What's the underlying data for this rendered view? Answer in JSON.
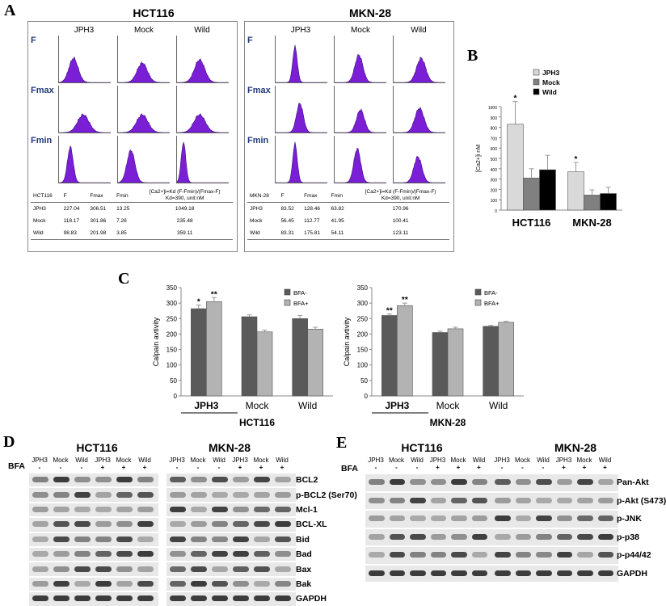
{
  "panel_labels": {
    "a": "A",
    "b": "B",
    "c": "C",
    "d": "D",
    "e": "E"
  },
  "panel_a": {
    "hct": {
      "title": "HCT116",
      "cols": [
        "JPH3",
        "Mock",
        "Wild"
      ],
      "rows": [
        "F",
        "Fmax",
        "Fmin"
      ],
      "table_header": [
        "HCT116",
        "F",
        "Fmax",
        "Fmin",
        "[Ca2+]i=Kd (F-Fmin)/(Fmax-F)",
        "Kd=390, unit:nM"
      ],
      "table_rows": [
        [
          "JPH3",
          "227.04",
          "306.51",
          "13.25",
          "1049.18"
        ],
        [
          "Mock",
          "118.17",
          "301.86",
          "7.26",
          "235.48"
        ],
        [
          "Wild",
          "98.83",
          "201.98",
          "3.85",
          "359.11"
        ]
      ]
    },
    "mkn": {
      "title": "MKN-28",
      "cols": [
        "JPH3",
        "Mock",
        "Wild"
      ],
      "rows": [
        "F",
        "Fmax",
        "Fmin"
      ],
      "table_header": [
        "MKN-28",
        "F",
        "Fmax",
        "Fmin",
        "[Ca2+]i=Kd (F-Fmin)/(Fmax-F)",
        "Kd=390, unit:nM"
      ],
      "table_rows": [
        [
          "JPH3",
          "83.52",
          "128.46",
          "63.82",
          "170.96"
        ],
        [
          "Mock",
          "56.45",
          "112.77",
          "41.95",
          "100.41"
        ],
        [
          "Wild",
          "83.31",
          "175.81",
          "54.11",
          "123.11"
        ]
      ]
    }
  },
  "chart_data": [
    {
      "id": "B",
      "type": "bar",
      "title": "",
      "ylabel": "[Ca2+]i nM",
      "xlabel": "",
      "categories": [
        "HCT116",
        "MKN-28"
      ],
      "series": [
        {
          "name": "JPH3",
          "values": [
            830,
            370
          ],
          "errors": [
            220,
            90
          ],
          "color": "#d9d9d9"
        },
        {
          "name": "Mock",
          "values": [
            310,
            145
          ],
          "errors": [
            90,
            50
          ],
          "color": "#808080"
        },
        {
          "name": "Wild",
          "values": [
            390,
            160
          ],
          "errors": [
            140,
            60
          ],
          "color": "#000000"
        }
      ],
      "annotations": [
        {
          "category": "HCT116",
          "series": "JPH3",
          "text": "*"
        },
        {
          "category": "MKN-28",
          "series": "JPH3",
          "text": "*"
        }
      ],
      "ylim": [
        0,
        1000
      ],
      "yticks": [
        "0",
        "100",
        "200",
        "300",
        "400",
        "500",
        "600",
        "700",
        "800",
        "900",
        "1000"
      ],
      "legend": "top-right"
    },
    {
      "id": "C-HCT116",
      "type": "bar",
      "title": "HCT116",
      "ylabel": "Calpain avtivity",
      "categories": [
        "JPH3",
        "Mock",
        "Wild"
      ],
      "series": [
        {
          "name": "BFA-",
          "values": [
            282,
            256,
            250
          ],
          "errors": [
            12,
            6,
            10
          ],
          "color": "#5a5a5a"
        },
        {
          "name": "BFA+",
          "values": [
            305,
            207,
            216
          ],
          "errors": [
            13,
            6,
            6
          ],
          "color": "#b3b3b3"
        }
      ],
      "annotations": [
        {
          "category": "JPH3",
          "series": "BFA-",
          "text": "*"
        },
        {
          "category": "JPH3",
          "series": "BFA+",
          "text": "**"
        }
      ],
      "ylim": [
        0,
        350
      ],
      "yticks": [
        "0",
        "50",
        "100",
        "150",
        "200",
        "250",
        "300",
        "350"
      ],
      "legend": "top-right"
    },
    {
      "id": "C-MKN28",
      "type": "bar",
      "title": "MKN-28",
      "ylabel": "Calpain avtivity",
      "categories": [
        "JPH3",
        "Mock",
        "Wild"
      ],
      "series": [
        {
          "name": "BFA-",
          "values": [
            260,
            205,
            225
          ],
          "errors": [
            5,
            4,
            3
          ],
          "color": "#5a5a5a"
        },
        {
          "name": "BFA+",
          "values": [
            292,
            217,
            238
          ],
          "errors": [
            8,
            5,
            3
          ],
          "color": "#b3b3b3"
        }
      ],
      "annotations": [
        {
          "category": "JPH3",
          "series": "BFA-",
          "text": "**"
        },
        {
          "category": "JPH3",
          "series": "BFA+",
          "text": "**"
        }
      ],
      "ylim": [
        0,
        350
      ],
      "yticks": [
        "0",
        "50",
        "100",
        "150",
        "200",
        "250",
        "300",
        "350"
      ],
      "legend": "top-right"
    }
  ],
  "panel_d": {
    "cell1": "HCT116",
    "cell2": "MKN-28",
    "bfa": "BFA",
    "lanes": [
      "JPH3",
      "Mock",
      "Wild",
      "JPH3",
      "Mock",
      "Wild"
    ],
    "signs": [
      "-",
      "-",
      "-",
      "+",
      "+",
      "+"
    ],
    "proteins": [
      "BCL2",
      "p-BCL2 (Ser70)",
      "Mcl-1",
      "BCL-XL",
      "Bid",
      "Bad",
      "Bax",
      "Bak",
      "GAPDH"
    ]
  },
  "panel_e": {
    "cell1": "HCT116",
    "cell2": "MKN-28",
    "bfa": "BFA",
    "lanes": [
      "JPH3",
      "Mock",
      "Wild",
      "JPH3",
      "Mock",
      "Wild"
    ],
    "signs": [
      "-",
      "-",
      "-",
      "+",
      "+",
      "+"
    ],
    "proteins": [
      "Pan-Akt",
      "p-Akt (S473)",
      "p-JNK",
      "p-p38",
      "p-p44/42",
      "GAPDH"
    ]
  }
}
